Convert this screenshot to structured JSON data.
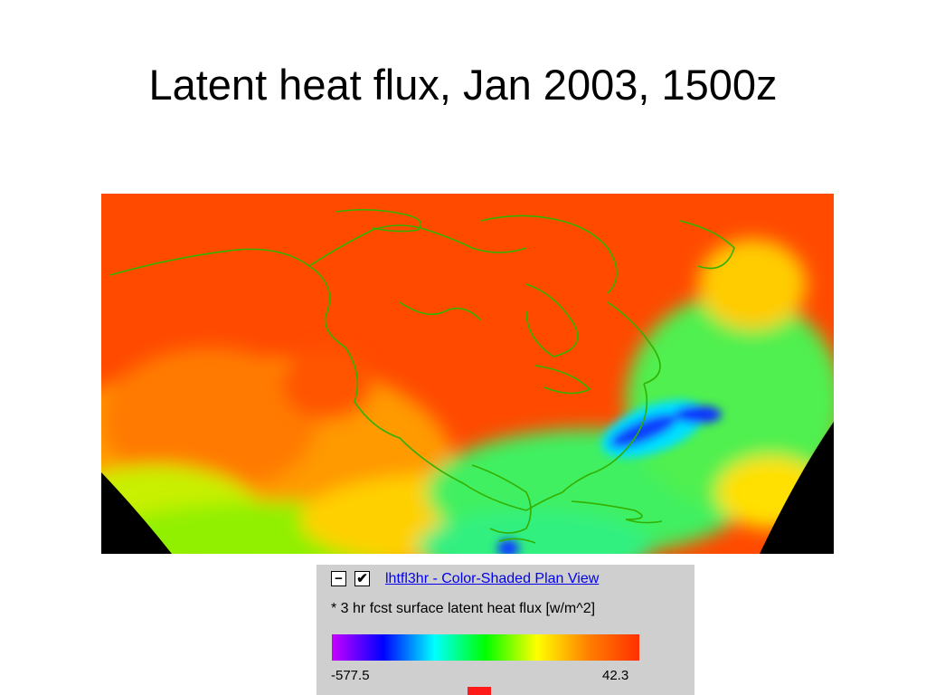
{
  "slide": {
    "title": "Latent heat flux, Jan 2003, 1500z"
  },
  "map": {
    "region": "North America and North Atlantic",
    "background_color": "#000000",
    "coastline_color": "#33b000",
    "dominant_color": "#ff4a00"
  },
  "legend": {
    "collapse_glyph": "−",
    "visible_glyph": "✔",
    "layer_name": "lhtfl3hr - Color-Shaded Plan View",
    "description": "* 3 hr fcst surface latent heat flux [w/m^2]",
    "range_min": "-577.5",
    "range_max": "42.3",
    "colorbar_colors": [
      "#c800ff",
      "#0000ff",
      "#00ffff",
      "#00ff00",
      "#ffff00",
      "#ff8000",
      "#ff3000"
    ]
  }
}
